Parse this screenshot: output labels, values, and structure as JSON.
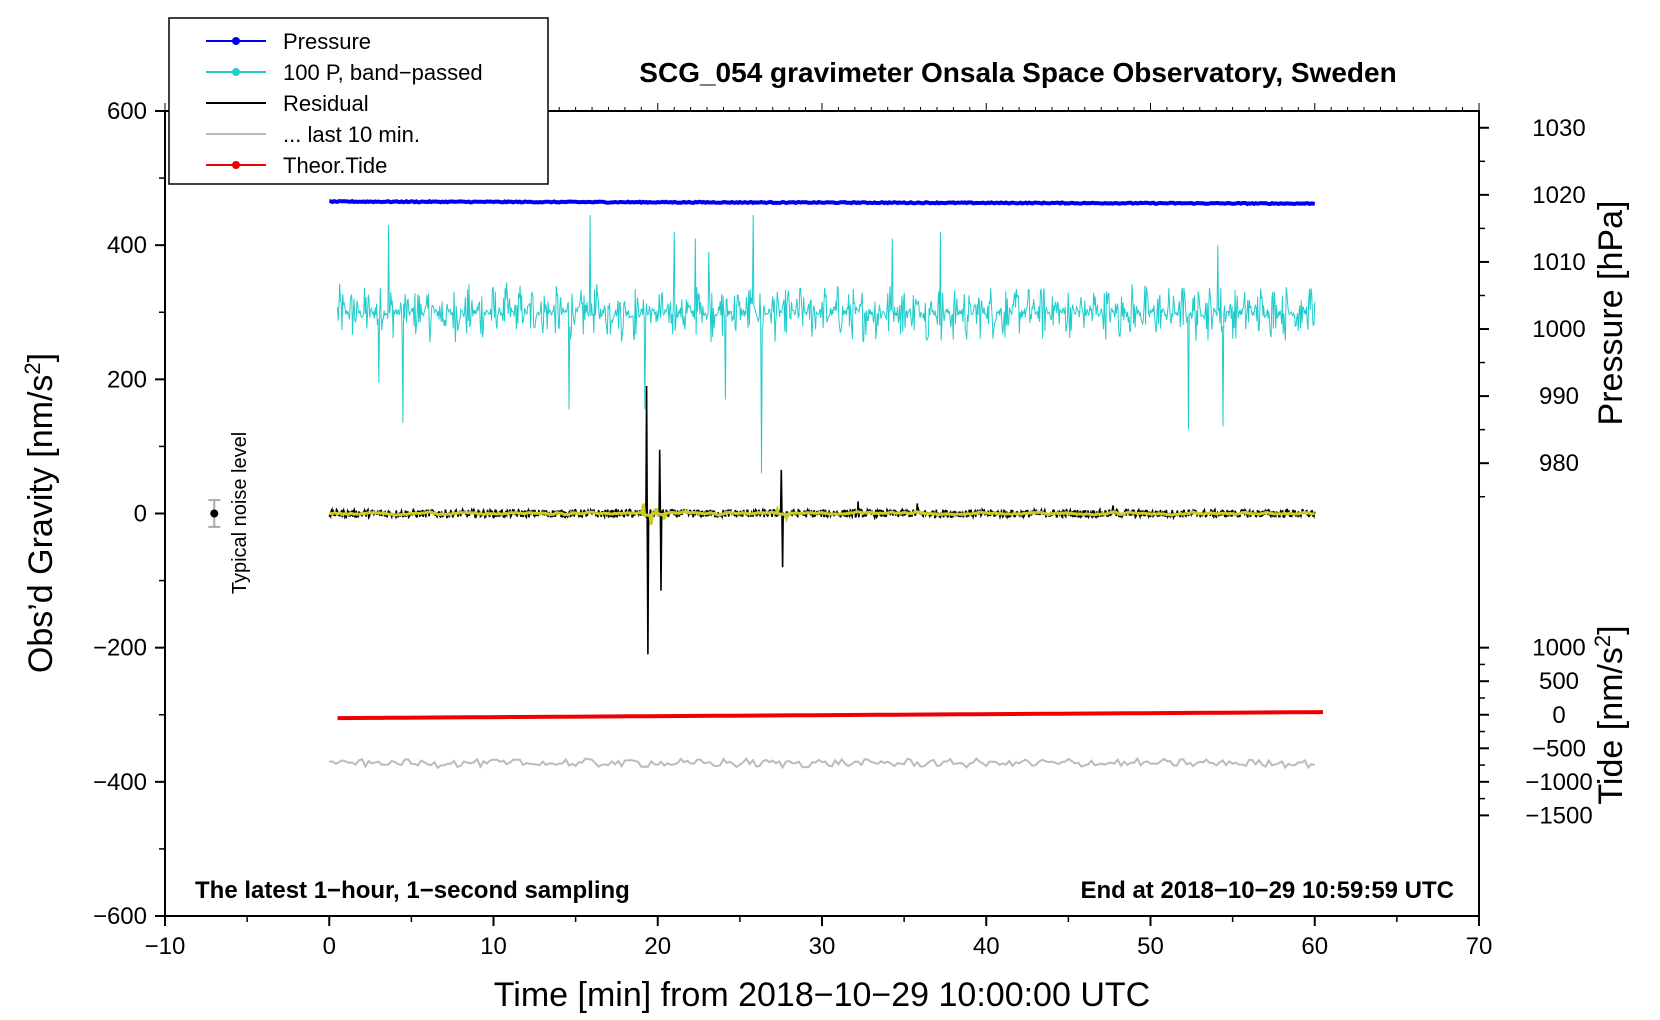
{
  "chart_data": {
    "type": "line",
    "title": "SCG_054 gravimeter Onsala Space Observatory, Sweden",
    "xlabel": "Time [min] from 2018−10−29 10:00:00 UTC",
    "ylabel_left": "Obs’d Gravity [nm/s",
    "ylabel_left_sup": "2",
    "ylabel_left_end": "]",
    "ylabel_right_top": "Pressure [hPa]",
    "ylabel_right_bottom": "Tide [nm/s",
    "ylabel_right_bottom_sup": "2",
    "ylabel_right_bottom_end": "]",
    "xlim": [
      -10,
      70
    ],
    "ylim": [
      -600,
      600
    ],
    "xticks": [
      {
        "v": -10,
        "t": "−10"
      },
      {
        "v": 0,
        "t": "0"
      },
      {
        "v": 10,
        "t": "10"
      },
      {
        "v": 20,
        "t": "20"
      },
      {
        "v": 30,
        "t": "30"
      },
      {
        "v": 40,
        "t": "40"
      },
      {
        "v": 50,
        "t": "50"
      },
      {
        "v": 60,
        "t": "60"
      },
      {
        "v": 70,
        "t": "70"
      }
    ],
    "yticks": [
      {
        "v": 600,
        "t": "600"
      },
      {
        "v": 400,
        "t": "400"
      },
      {
        "v": 200,
        "t": "200"
      },
      {
        "v": 0,
        "t": "0"
      },
      {
        "v": -200,
        "t": "−200"
      },
      {
        "v": -400,
        "t": "−400"
      },
      {
        "v": -600,
        "t": "−600"
      }
    ],
    "pressure_axis": {
      "gravity_per_hpa": 10,
      "gravity_at_1000": 275,
      "ticks": [
        {
          "v": 980,
          "t": "980"
        },
        {
          "v": 990,
          "t": "990"
        },
        {
          "v": 1000,
          "t": "1000"
        },
        {
          "v": 1010,
          "t": "1010"
        },
        {
          "v": 1020,
          "t": "1020"
        },
        {
          "v": 1030,
          "t": "1030"
        }
      ]
    },
    "tide_axis": {
      "gravity_per_unit": 0.1,
      "gravity_at_0": -300,
      "ticks": [
        {
          "v": 1000,
          "t": "1000"
        },
        {
          "v": 500,
          "t": "500"
        },
        {
          "v": 0,
          "t": "0"
        },
        {
          "v": -500,
          "t": "−500"
        },
        {
          "v": -1000,
          "t": "−1000"
        },
        {
          "v": -1500,
          "t": "−1500"
        }
      ]
    },
    "legend": [
      {
        "label": "Pressure",
        "color": "#0000ee",
        "marker": true
      },
      {
        "label": "100 P, band−passed",
        "color": "#22cccc",
        "marker": true
      },
      {
        "label": "Residual",
        "color": "#000000",
        "marker": false
      },
      {
        "label": "... last 10 min.",
        "color": "#bbbbbb",
        "marker": false
      },
      {
        "label": "Theor.Tide",
        "color": "#ee0000",
        "marker": true
      }
    ],
    "series": {
      "pressure": {
        "name": "Pressure",
        "color": "#0000ee",
        "x_start": 0,
        "x_end": 60,
        "y_start": 465,
        "y_end": 462
      },
      "band_passed": {
        "name": "100 P, band−passed",
        "color": "#22cccc",
        "x_start": 0.5,
        "x_end": 60,
        "center": 300,
        "amplitude": 45,
        "spikes": [
          [
            3,
            195
          ],
          [
            3.6,
            430
          ],
          [
            4.5,
            135
          ],
          [
            14.6,
            155
          ],
          [
            15.9,
            445
          ],
          [
            19.2,
            155
          ],
          [
            21,
            420
          ],
          [
            22.3,
            410
          ],
          [
            23.1,
            390
          ],
          [
            24.1,
            170
          ],
          [
            25.8,
            445
          ],
          [
            26.3,
            60
          ],
          [
            34.3,
            410
          ],
          [
            37.2,
            420
          ],
          [
            52.3,
            125
          ],
          [
            54.1,
            400
          ],
          [
            54.4,
            130
          ]
        ]
      },
      "residual": {
        "name": "Residual",
        "color": "#000000",
        "x_start": 0,
        "x_end": 60,
        "center": 0,
        "amplitude": 6,
        "spikes": [
          [
            19.3,
            190
          ],
          [
            19.4,
            -210
          ],
          [
            20.1,
            95
          ],
          [
            20.2,
            -115
          ],
          [
            27.5,
            65
          ],
          [
            27.6,
            -80
          ],
          [
            32.2,
            18
          ],
          [
            35.8,
            15
          ],
          [
            47.7,
            12
          ]
        ]
      },
      "smoothed": {
        "name": "Smoothed residual",
        "color": "#cccc22"
      },
      "tide": {
        "name": "Theor.Tide",
        "color": "#ee0000",
        "x_start": 0.5,
        "x_end": 60.5,
        "y_start": -305,
        "y_end": -296
      },
      "last10": {
        "name": "... last 10 min.",
        "color": "#bbbbbb",
        "x_start": 0,
        "x_end": 60,
        "center": -372,
        "amplitude": 5
      }
    },
    "noise_marker": {
      "x": -7,
      "y": 0,
      "err": 20,
      "label": "Typical noise level"
    },
    "bottom_left_note": "The latest 1−hour, 1−second sampling",
    "bottom_right_note": "End at 2018−10−29 10:59:59 UTC"
  }
}
